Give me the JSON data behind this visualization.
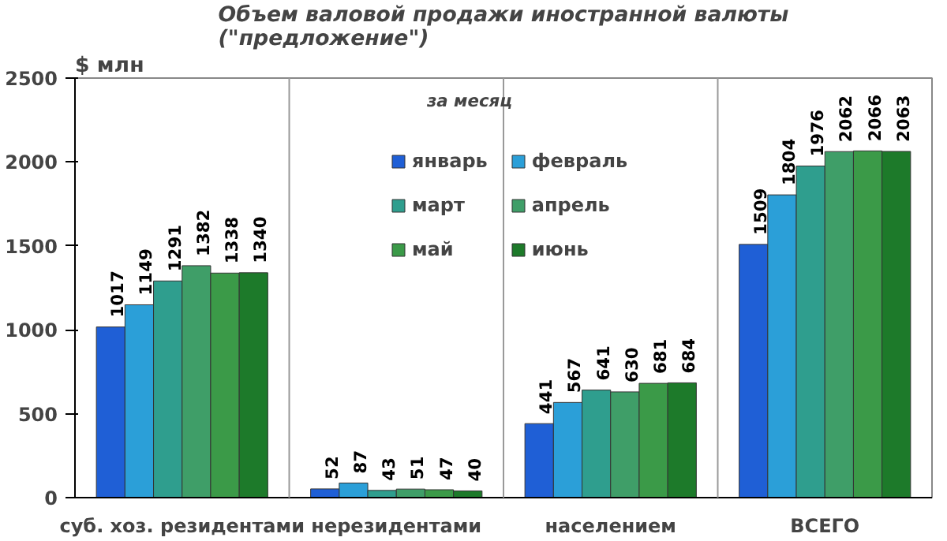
{
  "chart_data": {
    "type": "bar",
    "title": "Объем валовой продажи иностранной валюты\n(\"предложение\")",
    "subtitle": "за месяц",
    "ylabel": "$ млн",
    "categories": [
      "суб. хоз. резидентами",
      "нерезидентами",
      "населением",
      "ВСЕГО"
    ],
    "series": [
      {
        "name": "январь",
        "color": "#1f5fd6",
        "values": [
          1017,
          52,
          441,
          1509
        ]
      },
      {
        "name": "февраль",
        "color": "#2b9fd8",
        "values": [
          1149,
          87,
          567,
          1804
        ]
      },
      {
        "name": "март",
        "color": "#2f9e8e",
        "values": [
          1291,
          43,
          641,
          1976
        ]
      },
      {
        "name": "апрель",
        "color": "#3f9e68",
        "values": [
          1382,
          51,
          630,
          2062
        ]
      },
      {
        "name": "май",
        "color": "#3b9a48",
        "values": [
          1338,
          47,
          681,
          2066
        ]
      },
      {
        "name": "июнь",
        "color": "#1d7a2a",
        "values": [
          1340,
          40,
          684,
          2063
        ]
      }
    ],
    "ylim": [
      0,
      2500
    ],
    "yticks": [
      0,
      500,
      1000,
      1500,
      2000,
      2500
    ],
    "grid": "x",
    "legend": "top",
    "data_labels": true
  }
}
